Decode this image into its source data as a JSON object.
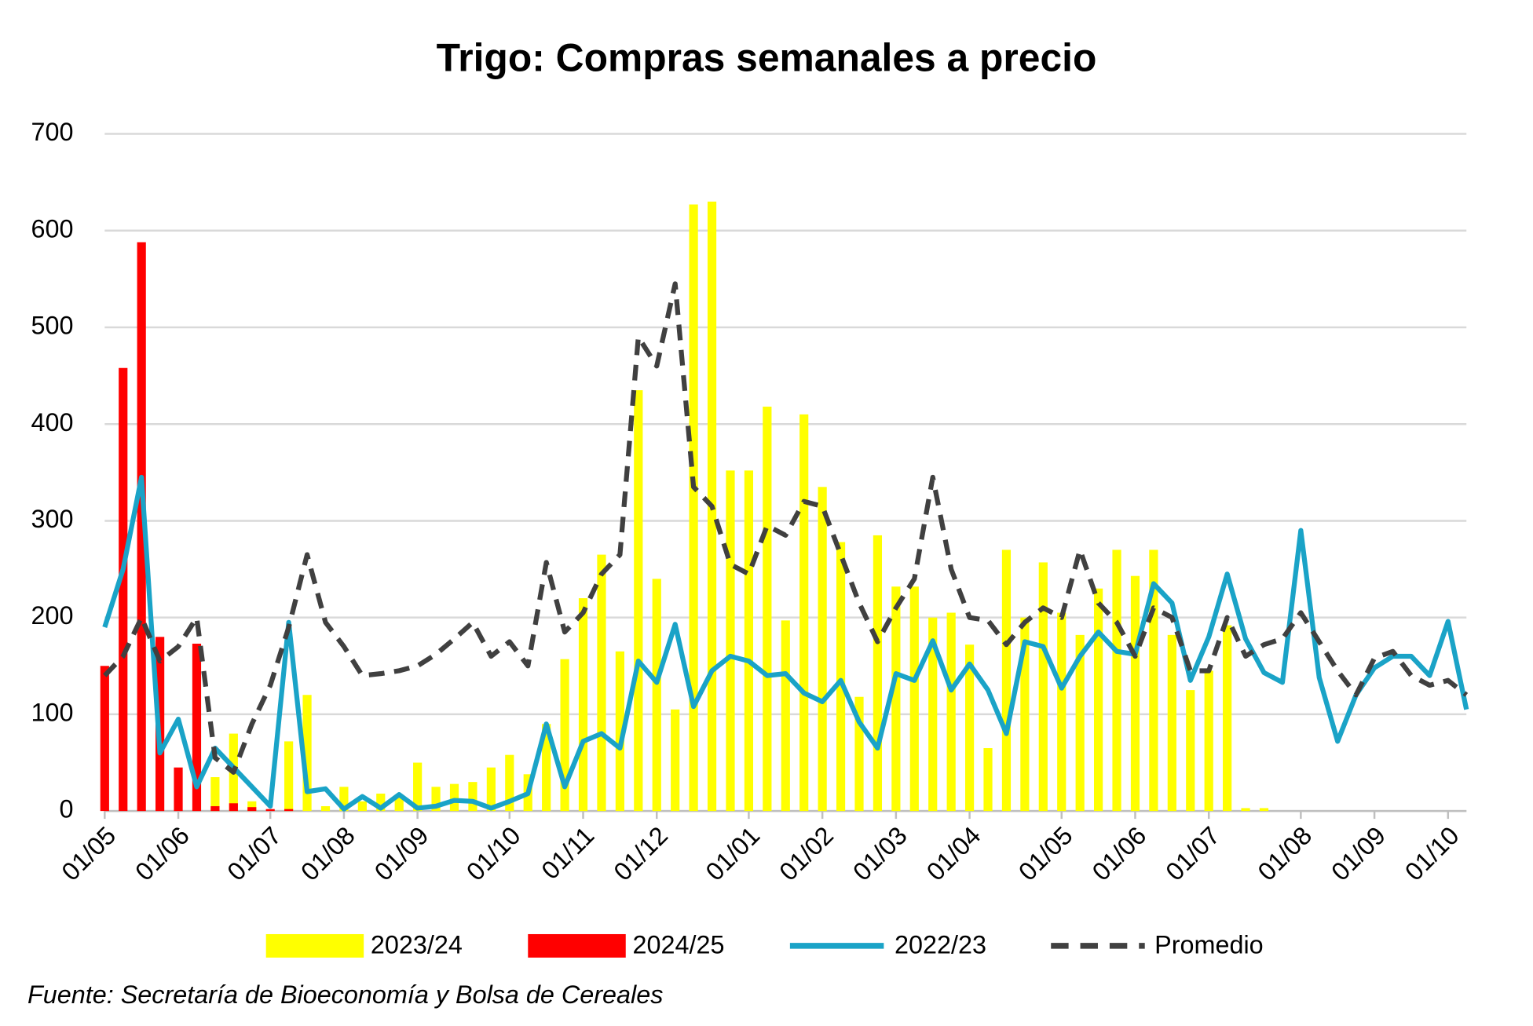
{
  "chart_data": {
    "type": "bar-line",
    "title": "Trigo: Compras semanales a precio",
    "source": "Fuente: Secretaría de Bioeconomía y Bolsa de Cereales",
    "categories": [
      "01/05",
      null,
      null,
      null,
      "01/06",
      null,
      null,
      null,
      null,
      "01/07",
      null,
      null,
      null,
      "01/08",
      null,
      null,
      null,
      "01/09",
      null,
      null,
      null,
      null,
      "01/10",
      null,
      null,
      null,
      "01/11",
      null,
      null,
      null,
      "01/12",
      null,
      null,
      null,
      null,
      "01/01",
      null,
      null,
      null,
      "01/02",
      null,
      null,
      null,
      "01/03",
      null,
      null,
      null,
      "01/04",
      null,
      null,
      null,
      null,
      "01/05",
      null,
      null,
      null,
      "01/06",
      null,
      null,
      null,
      "01/07",
      null,
      null,
      null,
      null,
      "01/08",
      null,
      null,
      null,
      "01/09",
      null,
      null,
      null,
      "01/10",
      null
    ],
    "series": [
      {
        "name": "2023/24",
        "kind": "bar",
        "color": "#ffff00",
        "values": [
          null,
          null,
          null,
          null,
          null,
          null,
          35,
          80,
          10,
          null,
          72,
          120,
          5,
          25,
          10,
          18,
          15,
          50,
          25,
          28,
          30,
          45,
          58,
          38,
          90,
          157,
          220,
          265,
          165,
          435,
          240,
          105,
          627,
          630,
          352,
          352,
          418,
          197,
          410,
          335,
          278,
          118,
          285,
          232,
          232,
          200,
          205,
          172,
          65,
          270,
          200,
          257,
          205,
          182,
          230,
          270,
          243,
          270,
          182,
          125,
          145,
          192,
          3,
          3,
          null,
          null,
          null,
          null,
          null,
          null,
          null,
          null,
          null,
          null,
          null
        ]
      },
      {
        "name": "2024/25",
        "kind": "bar",
        "color": "#ff0000",
        "values": [
          150,
          458,
          588,
          180,
          45,
          173,
          5,
          8,
          4,
          2,
          2,
          null,
          null,
          null,
          null,
          null,
          null,
          null,
          null,
          null,
          null,
          null,
          null,
          null,
          null,
          null,
          null,
          null,
          null,
          null,
          null,
          null,
          null,
          null,
          null,
          null,
          null,
          null,
          null,
          null,
          null,
          null,
          null,
          null,
          null,
          null,
          null,
          null,
          null,
          null,
          null,
          null,
          null,
          null,
          null,
          null,
          null,
          null,
          null,
          null,
          null,
          null,
          null,
          null,
          null,
          null,
          null,
          null,
          null,
          null,
          null,
          null,
          null,
          null,
          null
        ]
      },
      {
        "name": "2022/23",
        "kind": "line",
        "color": "#1aa3c7",
        "values": [
          190,
          250,
          345,
          60,
          95,
          25,
          65,
          45,
          25,
          5,
          195,
          20,
          23,
          2,
          15,
          3,
          17,
          3,
          5,
          11,
          10,
          3,
          10,
          18,
          90,
          25,
          72,
          80,
          65,
          155,
          133,
          193,
          108,
          145,
          160,
          155,
          140,
          142,
          122,
          113,
          135,
          92,
          65,
          142,
          135,
          176,
          125,
          152,
          125,
          80,
          175,
          170,
          127,
          160,
          185,
          165,
          162,
          235,
          215,
          135,
          180,
          245,
          178,
          143,
          133,
          290,
          138,
          72,
          120,
          148,
          160,
          160,
          140,
          196,
          105
        ]
      },
      {
        "name": "Promedio",
        "kind": "dashed",
        "color": "#404040",
        "values": [
          140,
          160,
          200,
          155,
          170,
          200,
          55,
          40,
          90,
          130,
          190,
          265,
          195,
          170,
          140,
          142,
          145,
          150,
          162,
          178,
          195,
          160,
          175,
          150,
          257,
          185,
          205,
          245,
          265,
          490,
          460,
          545,
          335,
          315,
          255,
          245,
          295,
          285,
          320,
          315,
          265,
          215,
          175,
          210,
          240,
          345,
          250,
          200,
          197,
          172,
          195,
          210,
          200,
          270,
          215,
          195,
          160,
          210,
          200,
          145,
          145,
          200,
          160,
          172,
          178,
          205,
          175,
          145,
          120,
          158,
          165,
          140,
          130,
          135,
          120
        ]
      }
    ],
    "ylim": [
      0,
      700
    ],
    "yticks": [
      0,
      100,
      200,
      300,
      400,
      500,
      600,
      700
    ],
    "grid": true,
    "legend": "bottom"
  }
}
